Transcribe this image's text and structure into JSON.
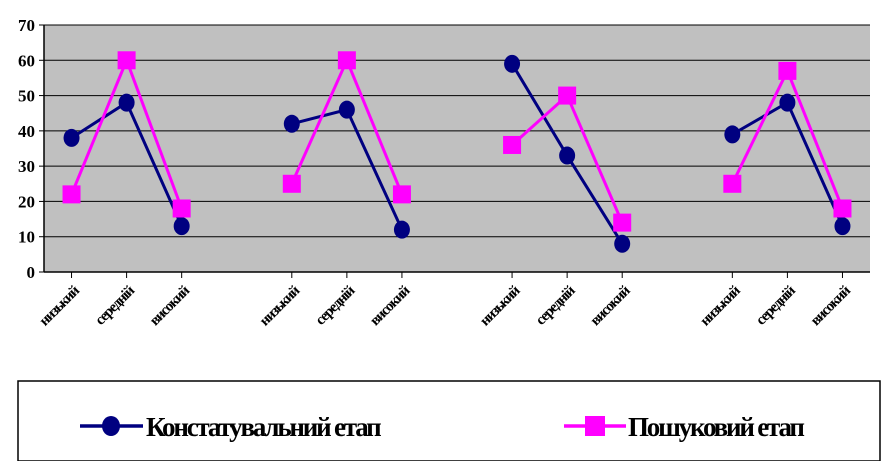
{
  "chart_data": {
    "type": "line",
    "categories": [
      "низький",
      "середній",
      "високий",
      "низький",
      "середній",
      "високий",
      "низький",
      "середній",
      "високий",
      "низький",
      "середній",
      "високий"
    ],
    "groups": 4,
    "ylim": [
      0,
      70
    ],
    "yticks": [
      "0",
      "10",
      "20",
      "30",
      "40",
      "50",
      "60",
      "70"
    ],
    "grid": true,
    "plot_background": "#c0c0c0",
    "legend_position": "bottom",
    "series": [
      {
        "name": "Констатувальний етап",
        "color": "#000080",
        "marker": "circle",
        "values": [
          38,
          48,
          13,
          42,
          46,
          12,
          59,
          33,
          8,
          39,
          48,
          13
        ]
      },
      {
        "name": "Пошуковий етап",
        "color": "#ff00ff",
        "marker": "square",
        "values": [
          22,
          60,
          18,
          25,
          60,
          22,
          36,
          50,
          14,
          25,
          57,
          18
        ]
      }
    ]
  }
}
